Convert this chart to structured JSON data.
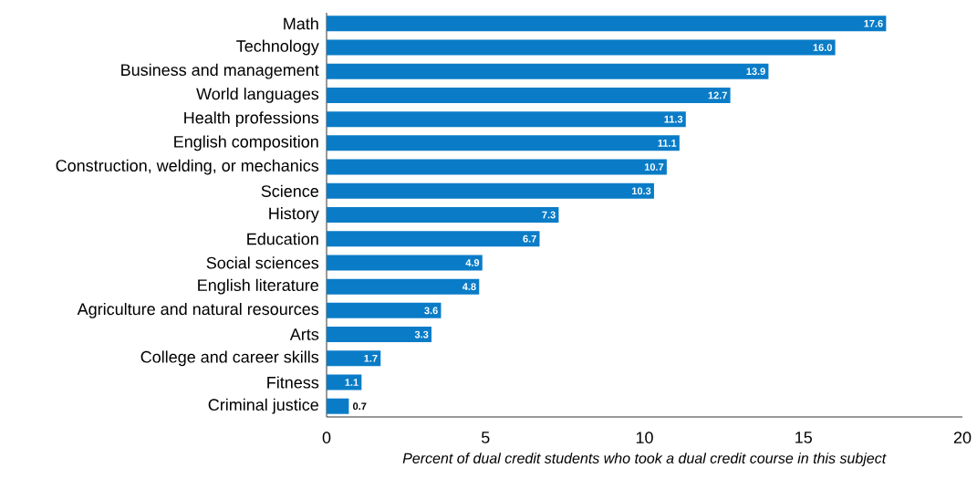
{
  "chart_data": {
    "type": "bar",
    "orientation": "horizontal",
    "xlabel": "*Percent of dual credit students who took a dual credit course in this subject*",
    "categories": [
      "Math",
      "Technology",
      "Business and management",
      "World languages",
      "Health professions",
      "English composition",
      "Construction, welding, or mechanics",
      "Science",
      "History",
      "Education",
      "Social sciences",
      "English literature",
      "Agriculture and natural resources",
      "Arts",
      "College and career skills",
      "Fitness",
      "Criminal justice"
    ],
    "values": [
      17.6,
      16.0,
      13.9,
      12.7,
      11.3,
      11.1,
      10.7,
      10.3,
      7.3,
      6.7,
      4.9,
      4.8,
      3.6,
      3.3,
      1.7,
      1.1,
      0.7
    ],
    "value_labels": [
      "17.6",
      "16.0",
      "13.9",
      "12.7",
      "11.3",
      "11.1",
      "10.7",
      "10.3",
      "7.3",
      "6.7",
      "4.9",
      "4.8",
      "3.6",
      "3.3",
      "1.7",
      "1.1",
      "0.7"
    ],
    "color": "#0a7cc7",
    "xlim": [
      0,
      20
    ],
    "xticks": [
      0,
      5,
      10,
      15,
      20
    ],
    "grid": false
  }
}
